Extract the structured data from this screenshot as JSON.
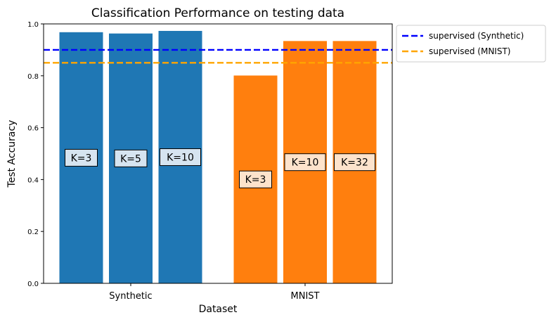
{
  "chart_data": {
    "type": "bar",
    "title": "Classification Performance on testing data",
    "xlabel": "Dataset",
    "ylabel": "Test Accuracy",
    "ylim": [
      0,
      1.0
    ],
    "yticks": [
      "0.0",
      "0.2",
      "0.4",
      "0.6",
      "0.8",
      "1.0"
    ],
    "grid": false,
    "legend_placement": "outside-top-right",
    "groups": [
      {
        "name": "Synthetic",
        "color": "#1f77b4",
        "label_box_color": "#d6e4f0",
        "bars": [
          {
            "label": "K=3",
            "value": 0.968
          },
          {
            "label": "K=5",
            "value": 0.963
          },
          {
            "label": "K=10",
            "value": 0.973
          }
        ]
      },
      {
        "name": "MNIST",
        "color": "#ff7f0e",
        "label_box_color": "#fde3cc",
        "bars": [
          {
            "label": "K=3",
            "value": 0.801
          },
          {
            "label": "K=10",
            "value": 0.934
          },
          {
            "label": "K=32",
            "value": 0.934
          }
        ]
      }
    ],
    "reference_lines": [
      {
        "name": "supervised (Synthetic)",
        "value": 0.9,
        "color": "#0000ff",
        "style": "dashed"
      },
      {
        "name": "supervised (MNIST)",
        "value": 0.85,
        "color": "#ffa500",
        "style": "dashed"
      }
    ]
  }
}
